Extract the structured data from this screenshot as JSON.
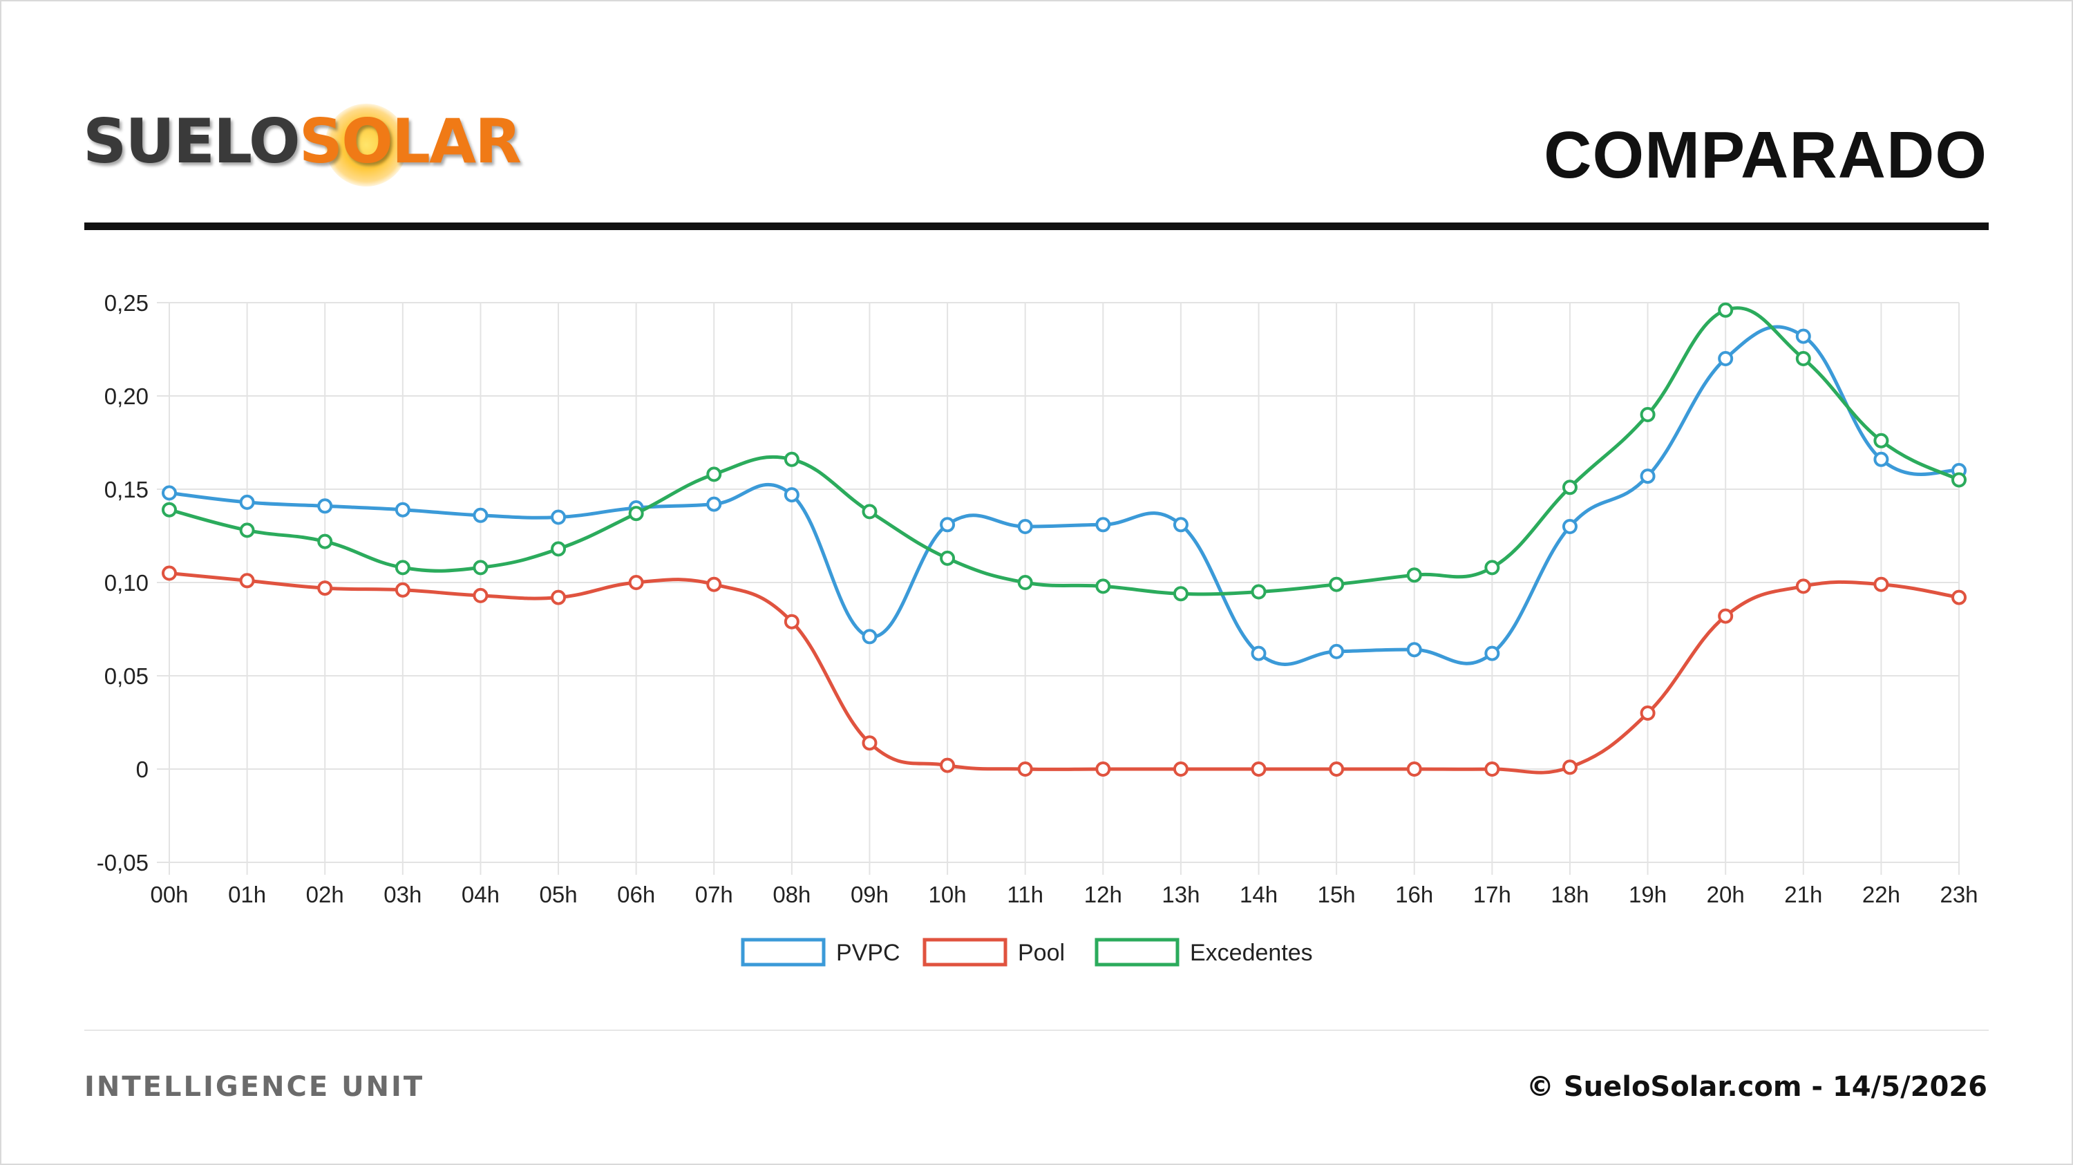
{
  "header": {
    "logo_part1": "SUELO",
    "logo_part2": "SOLAR",
    "title": "COMPARADO"
  },
  "footer": {
    "left": "INTELLIGENCE UNIT",
    "right": "© SueloSolar.com - 14/5/2026"
  },
  "chart_data": {
    "type": "line",
    "x": [
      "00h",
      "01h",
      "02h",
      "03h",
      "04h",
      "05h",
      "06h",
      "07h",
      "08h",
      "09h",
      "10h",
      "11h",
      "12h",
      "13h",
      "14h",
      "15h",
      "16h",
      "17h",
      "18h",
      "19h",
      "20h",
      "21h",
      "22h",
      "23h"
    ],
    "y_ticks": [
      "0,25",
      "0,20",
      "0,15",
      "0,10",
      "0,05",
      "0",
      "-0,05"
    ],
    "y_tick_values": [
      0.25,
      0.2,
      0.15,
      0.1,
      0.05,
      0,
      -0.05
    ],
    "ylim": [
      -0.05,
      0.25
    ],
    "grid": true,
    "legend_position": "bottom",
    "series": [
      {
        "name": "PVPC",
        "color": "#3b9ad8",
        "values": [
          0.148,
          0.143,
          0.141,
          0.139,
          0.136,
          0.135,
          0.14,
          0.142,
          0.147,
          0.071,
          0.131,
          0.13,
          0.131,
          0.131,
          0.062,
          0.063,
          0.064,
          0.062,
          0.13,
          0.157,
          0.22,
          0.232,
          0.166,
          0.16
        ]
      },
      {
        "name": "Pool",
        "color": "#e0533f",
        "values": [
          0.105,
          0.101,
          0.097,
          0.096,
          0.093,
          0.092,
          0.1,
          0.099,
          0.079,
          0.014,
          0.002,
          0.0,
          0.0,
          0.0,
          0.0,
          0.0,
          0.0,
          0.0,
          0.001,
          0.03,
          0.082,
          0.098,
          0.099,
          0.092
        ]
      },
      {
        "name": "Excedentes",
        "color": "#2bab5c",
        "values": [
          0.139,
          0.128,
          0.122,
          0.108,
          0.108,
          0.118,
          0.137,
          0.158,
          0.166,
          0.138,
          0.113,
          0.1,
          0.098,
          0.094,
          0.095,
          0.099,
          0.104,
          0.108,
          0.151,
          0.19,
          0.246,
          0.22,
          0.176,
          0.155
        ]
      }
    ]
  }
}
